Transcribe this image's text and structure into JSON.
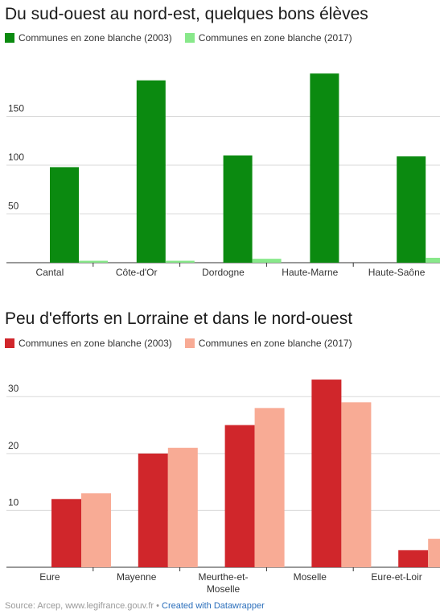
{
  "chart_data": [
    {
      "type": "bar",
      "title": "Du sud-ouest au nord-est, quelques bons élèves",
      "categories": [
        "Cantal",
        "Côte-d'Or",
        "Dordogne",
        "Haute-Marne",
        "Haute-Saône"
      ],
      "series": [
        {
          "name": "Communes en zone blanche (2003)",
          "color": "#0b8a10",
          "values": [
            98,
            187,
            110,
            194,
            109
          ]
        },
        {
          "name": "Communes en zone blanche (2017)",
          "color": "#88e88a",
          "values": [
            2,
            2,
            4,
            0,
            5
          ]
        }
      ],
      "yticks": [
        50,
        100,
        150
      ],
      "ylim": [
        0,
        200
      ],
      "grid": true,
      "legend": "top-left"
    },
    {
      "type": "bar",
      "title": "Peu d'efforts en Lorraine et dans le nord-ouest",
      "categories": [
        "Eure",
        "Mayenne",
        "Meurthe-et-Moselle",
        "Moselle",
        "Eure-et-Loir"
      ],
      "category_lines": [
        [
          "Eure"
        ],
        [
          "Mayenne"
        ],
        [
          "Meurthe-et-",
          "Moselle"
        ],
        [
          "Moselle"
        ],
        [
          "Eure-et-Loir"
        ]
      ],
      "series": [
        {
          "name": "Communes en zone blanche (2003)",
          "color": "#d0262b",
          "values": [
            12,
            20,
            25,
            33,
            3
          ]
        },
        {
          "name": "Communes en zone blanche (2017)",
          "color": "#f8ab95",
          "values": [
            13,
            21,
            28,
            29,
            5
          ]
        }
      ],
      "yticks": [
        10,
        20,
        30
      ],
      "ylim": [
        0,
        34
      ],
      "grid": true,
      "legend": "top-left"
    }
  ],
  "footer": {
    "source": "Source: Arcep, www.legifrance.gouv.fr • ",
    "credit": "Created with Datawrapper"
  }
}
